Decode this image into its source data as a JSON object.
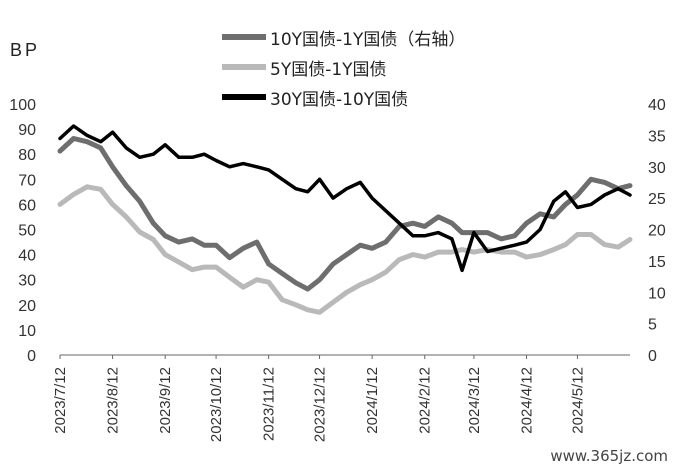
{
  "chart_data": {
    "type": "line",
    "ylabel": "BP",
    "left_axis": {
      "range": [
        0,
        100
      ],
      "ticks": [
        "0",
        "10",
        "20",
        "30",
        "40",
        "50",
        "60",
        "70",
        "80",
        "90",
        "100"
      ]
    },
    "right_axis": {
      "range": [
        0,
        40
      ],
      "ticks": [
        "0",
        "5",
        "10",
        "15",
        "20",
        "25",
        "30",
        "35",
        "40"
      ]
    },
    "x_ticks": [
      "2023/7/12",
      "2023/8/12",
      "2023/9/12",
      "2023/10/12",
      "2023/11/12",
      "2023/12/12",
      "2024/1/12",
      "2024/2/12",
      "2024/3/12",
      "2024/4/12",
      "2024/5/12"
    ],
    "grid": false,
    "legend_position": "top-right",
    "series": [
      {
        "name": "10Y国债-1Y国债（右轴）",
        "axis": "right",
        "color": "#6e6e6e",
        "x": [
          "2023-07-12",
          "2023-07-20",
          "2023-07-28",
          "2023-08-05",
          "2023-08-12",
          "2023-08-20",
          "2023-08-28",
          "2023-09-05",
          "2023-09-12",
          "2023-09-20",
          "2023-09-28",
          "2023-10-05",
          "2023-10-12",
          "2023-10-20",
          "2023-10-28",
          "2023-11-05",
          "2023-11-12",
          "2023-11-20",
          "2023-11-28",
          "2023-12-05",
          "2023-12-12",
          "2023-12-20",
          "2023-12-28",
          "2024-01-05",
          "2024-01-12",
          "2024-01-20",
          "2024-01-28",
          "2024-02-05",
          "2024-02-12",
          "2024-02-20",
          "2024-02-28",
          "2024-03-05",
          "2024-03-12",
          "2024-03-20",
          "2024-03-28",
          "2024-04-05",
          "2024-04-12",
          "2024-04-20",
          "2024-04-28",
          "2024-05-05",
          "2024-05-12",
          "2024-05-20",
          "2024-05-28",
          "2024-06-05",
          "2024-06-12"
        ],
        "values": [
          32.5,
          34.5,
          34.0,
          33.0,
          30.0,
          27.0,
          24.5,
          21.0,
          19.0,
          18.0,
          18.5,
          17.5,
          17.5,
          15.5,
          17.0,
          18.0,
          14.5,
          13.0,
          11.5,
          10.5,
          12.0,
          14.5,
          16.0,
          17.5,
          17.0,
          18.0,
          20.5,
          21.0,
          20.5,
          22.0,
          21.0,
          19.5,
          19.5,
          19.5,
          18.5,
          19.0,
          21.0,
          22.5,
          22.0,
          24.0,
          25.5,
          28.0,
          27.5,
          26.5,
          27.0
        ]
      },
      {
        "name": "5Y国债-1Y国债",
        "axis": "left",
        "color": "#b9b9b9",
        "x": [
          "2023-07-12",
          "2023-07-20",
          "2023-07-28",
          "2023-08-05",
          "2023-08-12",
          "2023-08-20",
          "2023-08-28",
          "2023-09-05",
          "2023-09-12",
          "2023-09-20",
          "2023-09-28",
          "2023-10-05",
          "2023-10-12",
          "2023-10-20",
          "2023-10-28",
          "2023-11-05",
          "2023-11-12",
          "2023-11-20",
          "2023-11-28",
          "2023-12-05",
          "2023-12-12",
          "2023-12-20",
          "2023-12-28",
          "2024-01-05",
          "2024-01-12",
          "2024-01-20",
          "2024-01-28",
          "2024-02-05",
          "2024-02-12",
          "2024-02-20",
          "2024-02-28",
          "2024-03-05",
          "2024-03-12",
          "2024-03-20",
          "2024-03-28",
          "2024-04-05",
          "2024-04-12",
          "2024-04-20",
          "2024-04-28",
          "2024-05-05",
          "2024-05-12",
          "2024-05-20",
          "2024-05-28",
          "2024-06-05",
          "2024-06-12"
        ],
        "values": [
          60,
          64,
          67,
          66,
          60,
          55,
          49,
          46,
          40,
          37,
          34,
          35,
          35,
          31,
          27,
          30,
          29,
          22,
          20,
          18,
          17,
          21,
          25,
          28,
          30,
          33,
          38,
          40,
          39,
          41,
          41,
          42,
          41,
          42,
          41,
          41,
          39,
          40,
          42,
          44,
          48,
          48,
          44,
          43,
          46
        ]
      },
      {
        "name": "30Y国债-10Y国债",
        "axis": "right",
        "color": "#000000",
        "x": [
          "2023-07-12",
          "2023-07-20",
          "2023-07-28",
          "2023-08-05",
          "2023-08-12",
          "2023-08-20",
          "2023-08-28",
          "2023-09-05",
          "2023-09-12",
          "2023-09-20",
          "2023-09-28",
          "2023-10-05",
          "2023-10-12",
          "2023-10-20",
          "2023-10-28",
          "2023-11-05",
          "2023-11-12",
          "2023-11-20",
          "2023-11-28",
          "2023-12-05",
          "2023-12-12",
          "2023-12-20",
          "2023-12-28",
          "2024-01-05",
          "2024-01-12",
          "2024-01-20",
          "2024-01-28",
          "2024-02-05",
          "2024-02-12",
          "2024-02-20",
          "2024-02-28",
          "2024-03-05",
          "2024-03-12",
          "2024-03-20",
          "2024-03-28",
          "2024-04-05",
          "2024-04-12",
          "2024-04-20",
          "2024-04-28",
          "2024-05-05",
          "2024-05-12",
          "2024-05-20",
          "2024-05-28",
          "2024-06-05",
          "2024-06-12"
        ],
        "values": [
          34.5,
          36.5,
          35.0,
          34.0,
          35.5,
          33.0,
          31.5,
          32.0,
          33.5,
          31.5,
          31.5,
          32.0,
          31.0,
          30.0,
          30.5,
          30.0,
          29.5,
          28.0,
          26.5,
          26.0,
          28.0,
          25.0,
          26.5,
          27.5,
          25.0,
          23.0,
          21.0,
          19.0,
          19.0,
          19.5,
          18.5,
          13.5,
          19.5,
          16.5,
          17.0,
          17.5,
          18.0,
          20.0,
          24.5,
          26.0,
          23.5,
          24.0,
          25.5,
          26.5,
          25.5
        ]
      }
    ]
  },
  "watermark": "www.365jz.com"
}
